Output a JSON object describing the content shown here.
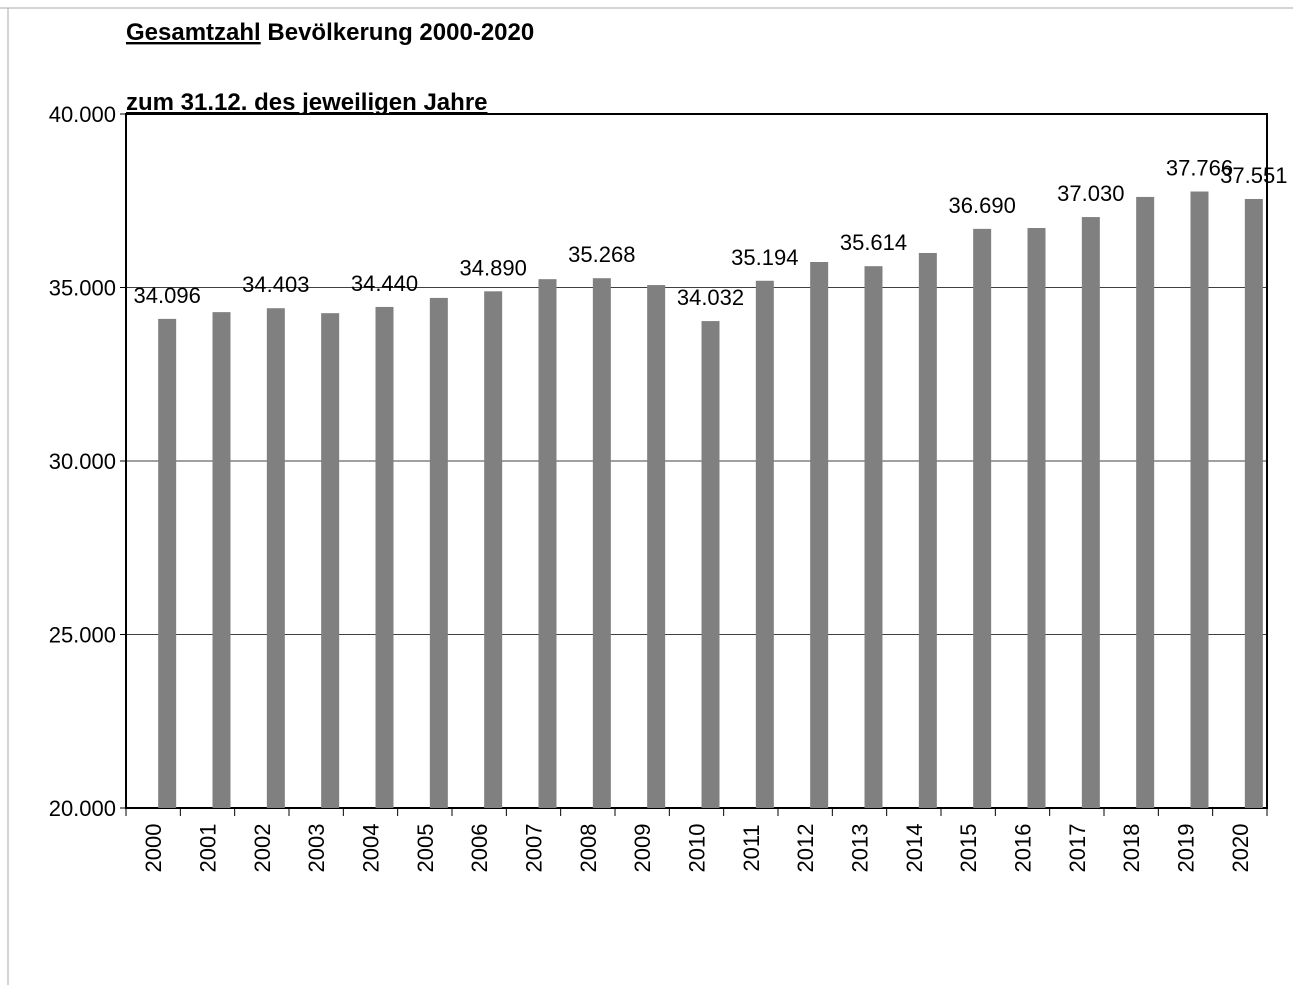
{
  "chart_data": {
    "type": "bar",
    "title_underlined": "Gesamtzahl",
    "title_rest": "Bevölkerung 2000-2020",
    "subtitle": "zum 31.12. des jeweiligen Jahre",
    "categories": [
      "2000",
      "2001",
      "2002",
      "2003",
      "2004",
      "2005",
      "2006",
      "2007",
      "2008",
      "2009",
      "2010",
      "2011",
      "2012",
      "2013",
      "2014",
      "2015",
      "2016",
      "2017",
      "2018",
      "2019",
      "2020"
    ],
    "values": [
      34096,
      34290,
      34403,
      34260,
      34440,
      34700,
      34890,
      35240,
      35268,
      35070,
      34032,
      35194,
      35735,
      35614,
      35995,
      36690,
      36715,
      37030,
      37610,
      37766,
      37551
    ],
    "value_labels": [
      "34.096",
      null,
      "34.403",
      null,
      "34.440",
      null,
      "34.890",
      null,
      "35.268",
      null,
      "34.032",
      "35.194",
      null,
      "35.614",
      null,
      "36.690",
      null,
      "37.030",
      null,
      "37.766",
      "37.551"
    ],
    "color": "#808080",
    "ylim": [
      20000,
      40000
    ],
    "yticks": [
      {
        "value": 20000,
        "label": "20.000"
      },
      {
        "value": 25000,
        "label": "25.000"
      },
      {
        "value": 30000,
        "label": "30.000"
      },
      {
        "value": 35000,
        "label": "35.000"
      },
      {
        "value": 40000,
        "label": "40.000"
      }
    ],
    "grid": true
  }
}
